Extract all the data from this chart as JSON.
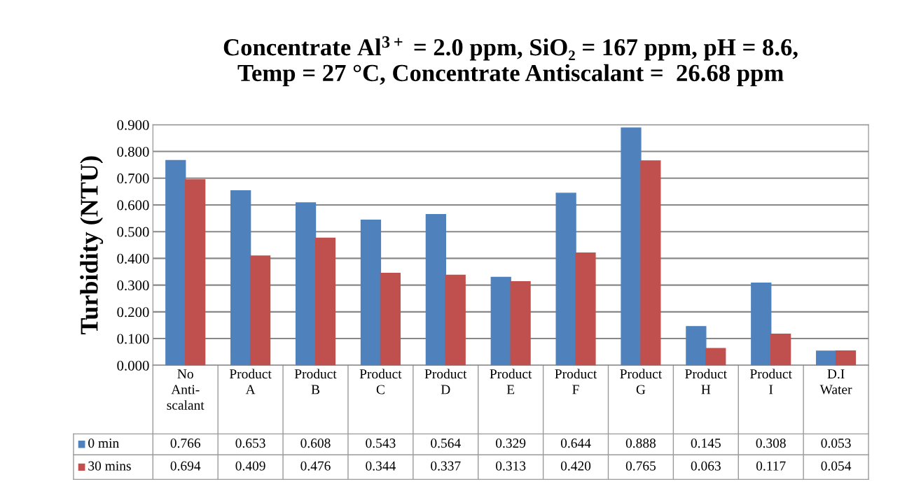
{
  "chart_data": {
    "type": "bar",
    "title": "Concentrate Al$^{3+}$ = 2.0 ppm, SiO₂ = 167 ppm, pH = 8.6,\nTemp = 27 °C, Concentrate Antiscalant =  26.68 ppm",
    "ylabel": "Turbidity (NTU)",
    "categories": [
      "No\nAnti-\nscalant",
      "Product\nA",
      "Product\nB",
      "Product\nC",
      "Product\nD",
      "Product\nE",
      "Product\nF",
      "Product\nG",
      "Product\nH",
      "Product\nI",
      "D.I\nWater"
    ],
    "series": [
      {
        "name": "0 min",
        "color": "#4f81bd",
        "values": [
          0.766,
          0.653,
          0.608,
          0.543,
          0.564,
          0.329,
          0.644,
          0.888,
          0.145,
          0.308,
          0.053
        ],
        "value_labels": [
          "0.766",
          "0.653",
          "0.608",
          "0.543",
          "0.564",
          "0.329",
          "0.644",
          "0.888",
          "0.145",
          "0.308",
          "0.053"
        ]
      },
      {
        "name": "30 mins",
        "color": "#c0504d",
        "values": [
          0.694,
          0.409,
          0.476,
          0.344,
          0.337,
          0.313,
          0.42,
          0.765,
          0.063,
          0.117,
          0.054
        ],
        "value_labels": [
          "0.694",
          "0.409",
          "0.476",
          "0.344",
          "0.337",
          "0.313",
          "0.420",
          "0.765",
          "0.063",
          "0.117",
          "0.054"
        ]
      }
    ],
    "ylim": [
      0,
      0.9
    ],
    "yticks": [
      {
        "value": 0,
        "label": "0.000"
      },
      {
        "value": 0.1,
        "label": "0.100"
      },
      {
        "value": 0.2,
        "label": "0.200"
      },
      {
        "value": 0.3,
        "label": "0.300"
      },
      {
        "value": 0.4,
        "label": "0.400"
      },
      {
        "value": 0.5,
        "label": "0.500"
      },
      {
        "value": 0.6,
        "label": "0.600"
      },
      {
        "value": 0.7,
        "label": "0.700"
      },
      {
        "value": 0.8,
        "label": "0.800"
      },
      {
        "value": 0.9,
        "label": "0.900"
      }
    ],
    "grid": "y",
    "legend": "bottom"
  }
}
